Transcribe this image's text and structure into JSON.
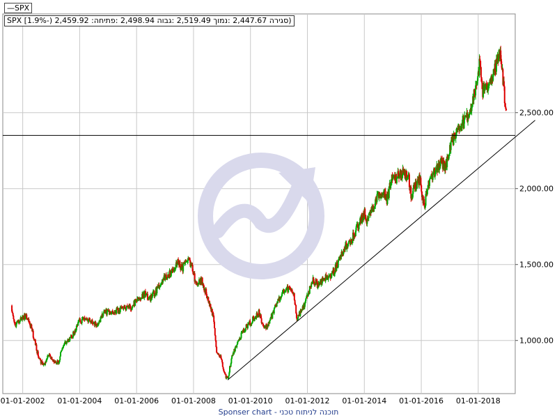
{
  "legend": {
    "label": "—SPX"
  },
  "info": {
    "text": "SPX [1.9%-) 2,459.92 :סגירה 2,447.67 :נמוך 2,519.49 :גבוה 2,498.94 :פתיחה)"
  },
  "footer": {
    "text": "Sponser chart - תוכנה לניתוח טכני"
  },
  "watermark": {
    "icon": "growth-arrow-circle-icon",
    "color": "#d9d9ec"
  },
  "colors": {
    "up": "#00aa00",
    "down": "#dd0000",
    "grid": "#c8c8c8",
    "line": "#000000"
  },
  "chart_data": {
    "type": "candlestick",
    "title": "",
    "xlabel": "",
    "ylabel": "",
    "x_tick_labels": [
      "01-01-2002",
      "01-01-2004",
      "01-01-2006",
      "01-01-2008",
      "01-01-2010",
      "01-01-2012",
      "01-01-2014",
      "01-01-2016",
      "01-01-2018"
    ],
    "x_tick_years": [
      2002,
      2004,
      2006,
      2008,
      2010,
      2012,
      2014,
      2016,
      2018
    ],
    "y_tick_labels": [
      "1,000.00",
      "1,500.00",
      "2,000.00",
      "2,500.00"
    ],
    "y_tick_values": [
      1000,
      1500,
      2000,
      2500
    ],
    "ylim": [
      650,
      3150
    ],
    "xlim": [
      2001.3,
      2019.3
    ],
    "grid": true,
    "price_path": [
      [
        2001.6,
        1230
      ],
      [
        2001.72,
        1100
      ],
      [
        2001.85,
        1120
      ],
      [
        2002.0,
        1150
      ],
      [
        2002.1,
        1160
      ],
      [
        2002.3,
        1090
      ],
      [
        2002.5,
        930
      ],
      [
        2002.62,
        860
      ],
      [
        2002.75,
        840
      ],
      [
        2002.9,
        900
      ],
      [
        2003.1,
        860
      ],
      [
        2003.25,
        850
      ],
      [
        2003.4,
        960
      ],
      [
        2003.6,
        1000
      ],
      [
        2003.8,
        1050
      ],
      [
        2004.0,
        1130
      ],
      [
        2004.3,
        1140
      ],
      [
        2004.6,
        1100
      ],
      [
        2004.9,
        1190
      ],
      [
        2005.2,
        1190
      ],
      [
        2005.5,
        1210
      ],
      [
        2005.8,
        1220
      ],
      [
        2006.0,
        1260
      ],
      [
        2006.3,
        1310
      ],
      [
        2006.45,
        1270
      ],
      [
        2006.7,
        1330
      ],
      [
        2006.95,
        1410
      ],
      [
        2007.2,
        1440
      ],
      [
        2007.45,
        1520
      ],
      [
        2007.6,
        1470
      ],
      [
        2007.8,
        1540
      ],
      [
        2007.95,
        1470
      ],
      [
        2008.1,
        1370
      ],
      [
        2008.3,
        1390
      ],
      [
        2008.5,
        1280
      ],
      [
        2008.7,
        1160
      ],
      [
        2008.8,
        940
      ],
      [
        2008.95,
        890
      ],
      [
        2009.1,
        780
      ],
      [
        2009.2,
        740
      ],
      [
        2009.35,
        900
      ],
      [
        2009.5,
        960
      ],
      [
        2009.7,
        1050
      ],
      [
        2009.95,
        1110
      ],
      [
        2010.2,
        1160
      ],
      [
        2010.3,
        1190
      ],
      [
        2010.45,
        1080
      ],
      [
        2010.6,
        1100
      ],
      [
        2010.8,
        1180
      ],
      [
        2010.95,
        1260
      ],
      [
        2011.2,
        1330
      ],
      [
        2011.4,
        1340
      ],
      [
        2011.55,
        1280
      ],
      [
        2011.62,
        1140
      ],
      [
        2011.75,
        1180
      ],
      [
        2011.95,
        1260
      ],
      [
        2012.2,
        1400
      ],
      [
        2012.4,
        1360
      ],
      [
        2012.6,
        1410
      ],
      [
        2012.8,
        1420
      ],
      [
        2013.0,
        1480
      ],
      [
        2013.2,
        1570
      ],
      [
        2013.4,
        1630
      ],
      [
        2013.6,
        1680
      ],
      [
        2013.8,
        1760
      ],
      [
        2014.0,
        1840
      ],
      [
        2014.1,
        1780
      ],
      [
        2014.3,
        1880
      ],
      [
        2014.5,
        1960
      ],
      [
        2014.7,
        1970
      ],
      [
        2014.8,
        1920
      ],
      [
        2014.95,
        2060
      ],
      [
        2015.2,
        2080
      ],
      [
        2015.4,
        2100
      ],
      [
        2015.55,
        2080
      ],
      [
        2015.65,
        1940
      ],
      [
        2015.75,
        2000
      ],
      [
        2015.95,
        2060
      ],
      [
        2016.05,
        1930
      ],
      [
        2016.12,
        1900
      ],
      [
        2016.3,
        2070
      ],
      [
        2016.5,
        2110
      ],
      [
        2016.7,
        2170
      ],
      [
        2016.85,
        2140
      ],
      [
        2017.0,
        2270
      ],
      [
        2017.2,
        2370
      ],
      [
        2017.45,
        2420
      ],
      [
        2017.7,
        2510
      ],
      [
        2017.95,
        2680
      ],
      [
        2018.05,
        2820
      ],
      [
        2018.15,
        2640
      ],
      [
        2018.3,
        2650
      ],
      [
        2018.5,
        2720
      ],
      [
        2018.65,
        2820
      ],
      [
        2018.75,
        2910
      ],
      [
        2018.82,
        2800
      ],
      [
        2018.88,
        2700
      ],
      [
        2018.95,
        2510
      ],
      [
        2019.0,
        2459.92
      ]
    ],
    "support_line": {
      "from": [
        2009.2,
        740
      ],
      "to": [
        2020.0,
        2450
      ]
    },
    "horizontal_line": {
      "value": 2350
    },
    "last_bar": {
      "change": "-1.9%",
      "open": 2498.94,
      "high": 2519.49,
      "low": 2447.67,
      "close": 2459.92
    }
  }
}
